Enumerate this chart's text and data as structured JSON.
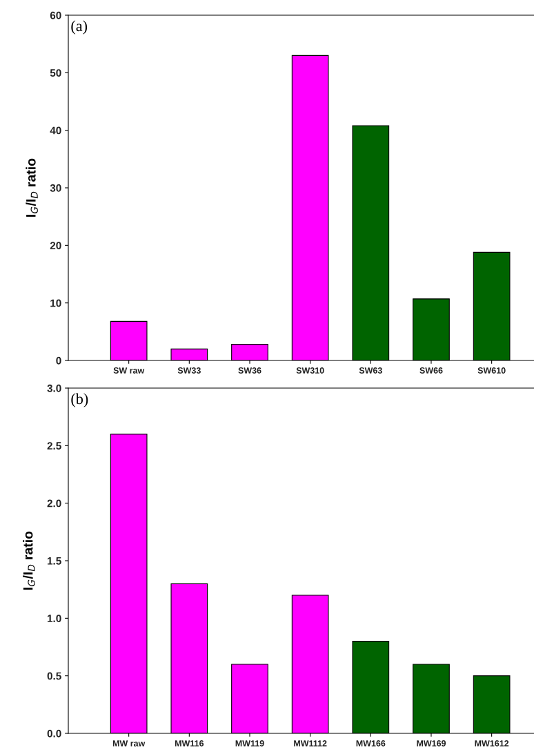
{
  "chart_data": [
    {
      "type": "bar",
      "ylabel": "I$_{G}$/I$_{D}$ ratio",
      "annotations": [
        "(a)"
      ],
      "categories": [
        "SW raw",
        "SW33",
        "SW36",
        "SW310",
        "SW63",
        "SW66",
        "SW610"
      ],
      "values": [
        6.8,
        2.0,
        2.8,
        53.0,
        40.8,
        10.7,
        18.8
      ],
      "colors": [
        "#ff00ff",
        "#ff00ff",
        "#ff00ff",
        "#ff00ff",
        "#006400",
        "#006400",
        "#006400"
      ],
      "ylim": [
        0,
        60
      ],
      "yticks": [
        0,
        10,
        20,
        30,
        40,
        50,
        60
      ],
      "grid": false,
      "legend": false
    },
    {
      "type": "bar",
      "ylabel": "I$_{G}$/I$_{D}$ ratio",
      "annotations": [
        "(b)"
      ],
      "categories": [
        "MW raw",
        "MW116",
        "MW119",
        "MW1112",
        "MW166",
        "MW169",
        "MW1612"
      ],
      "values": [
        2.6,
        1.3,
        0.6,
        1.2,
        0.8,
        0.6,
        0.5
      ],
      "colors": [
        "#ff00ff",
        "#ff00ff",
        "#ff00ff",
        "#ff00ff",
        "#006400",
        "#006400",
        "#006400"
      ],
      "ylim": [
        0,
        3.0
      ],
      "yticks": [
        {
          "value": 0,
          "label": "0.0"
        },
        {
          "value": 0.5,
          "label": "0.5"
        },
        {
          "value": 1.0,
          "label": "1.0"
        },
        {
          "value": 1.5,
          "label": "1.5"
        },
        {
          "value": 2.0,
          "label": "2.0"
        },
        {
          "value": 2.5,
          "label": "2.5"
        },
        {
          "value": 3.0,
          "label": "3.0"
        }
      ],
      "grid": false,
      "legend": false
    }
  ]
}
